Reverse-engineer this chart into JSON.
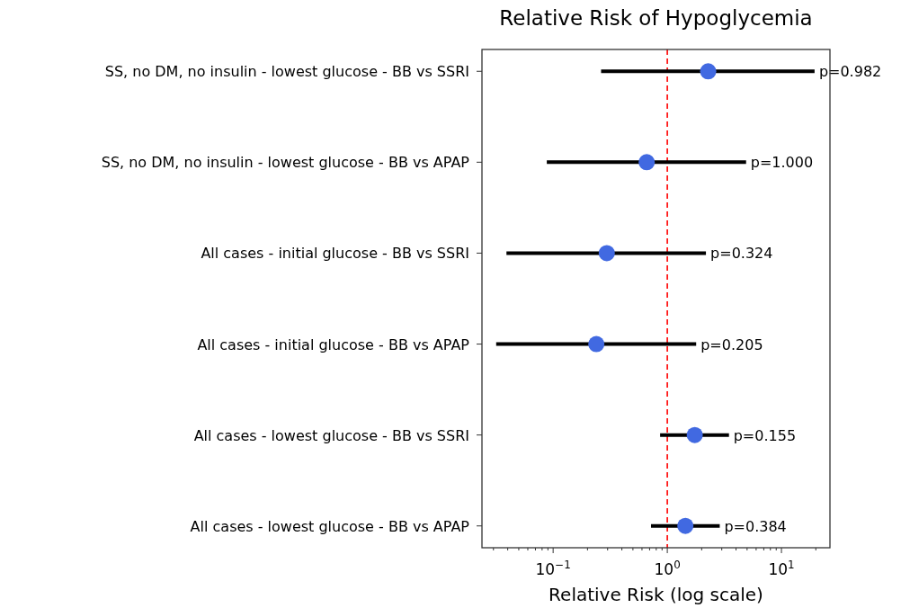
{
  "chart_data": {
    "type": "scatter",
    "orientation": "horizontal",
    "title": "Relative Risk of Hypoglycemia",
    "xlabel": "Relative Risk (log scale)",
    "log": "x",
    "categories": [
      "SS, no DM, no insulin - lowest glucose - BB vs SSRI",
      "SS, no DM, no insulin - lowest glucose - BB vs APAP",
      "All cases - initial glucose - BB vs SSRI",
      "All cases - initial glucose - BB vs APAP",
      "All cases - lowest glucose - BB vs SSRI",
      "All cases - lowest glucose - BB vs APAP"
    ],
    "series": [
      {
        "color": "#4169e1",
        "values": [
          2.28,
          0.66,
          0.295,
          0.239,
          1.74,
          1.44
        ],
        "errors": [
          [
            0.263,
            19.5
          ],
          [
            0.088,
            4.9
          ],
          [
            0.039,
            2.18
          ],
          [
            0.0317,
            1.79
          ],
          [
            0.865,
            3.47
          ],
          [
            0.72,
            2.88
          ]
        ]
      }
    ],
    "annotations": [
      {
        "text": "p=0.982",
        "x": 19.5,
        "y": "SS, no DM, no insulin - lowest glucose - BB vs SSRI"
      },
      {
        "text": "p=1.000",
        "x": 4.9,
        "y": "SS, no DM, no insulin - lowest glucose - BB vs APAP"
      },
      {
        "text": "p=0.324",
        "x": 2.18,
        "y": "All cases - initial glucose - BB vs SSRI"
      },
      {
        "text": "p=0.205",
        "x": 1.79,
        "y": "All cases - initial glucose - BB vs APAP"
      },
      {
        "text": "p=0.155",
        "x": 3.47,
        "y": "All cases - lowest glucose - BB vs SSRI"
      },
      {
        "text": "p=0.384",
        "x": 2.88,
        "y": "All cases - lowest glucose - BB vs APAP"
      }
    ],
    "marker": "circle",
    "xlim": [
      0.0238,
      26.6
    ],
    "xticks": [
      {
        "value": 0.03,
        "label": null
      },
      {
        "value": 0.04,
        "label": null
      },
      {
        "value": 0.05,
        "label": null
      },
      {
        "value": 0.06,
        "label": null
      },
      {
        "value": 0.07,
        "label": null
      },
      {
        "value": 0.08,
        "label": null
      },
      {
        "value": 0.09,
        "label": null
      },
      {
        "value": 0.1,
        "label": "10$^{−1}$"
      },
      {
        "value": 0.2,
        "label": null
      },
      {
        "value": 0.3,
        "label": null
      },
      {
        "value": 0.4,
        "label": null
      },
      {
        "value": 0.5,
        "label": null
      },
      {
        "value": 0.6,
        "label": null
      },
      {
        "value": 0.7,
        "label": null
      },
      {
        "value": 0.8,
        "label": null
      },
      {
        "value": 0.9,
        "label": null
      },
      {
        "value": 1,
        "label": "10$^{0}$"
      },
      {
        "value": 2,
        "label": null
      },
      {
        "value": 3,
        "label": null
      },
      {
        "value": 4,
        "label": null
      },
      {
        "value": 5,
        "label": null
      },
      {
        "value": 6,
        "label": null
      },
      {
        "value": 7,
        "label": null
      },
      {
        "value": 8,
        "label": null
      },
      {
        "value": 9,
        "label": null
      },
      {
        "value": 10,
        "label": "10$^{1}$"
      },
      {
        "value": 20,
        "label": null
      }
    ],
    "ref_lines": [
      {
        "axis": "x",
        "value": 1,
        "color": "#ff0000",
        "line_style": "dashed"
      }
    ],
    "grid": false
  }
}
